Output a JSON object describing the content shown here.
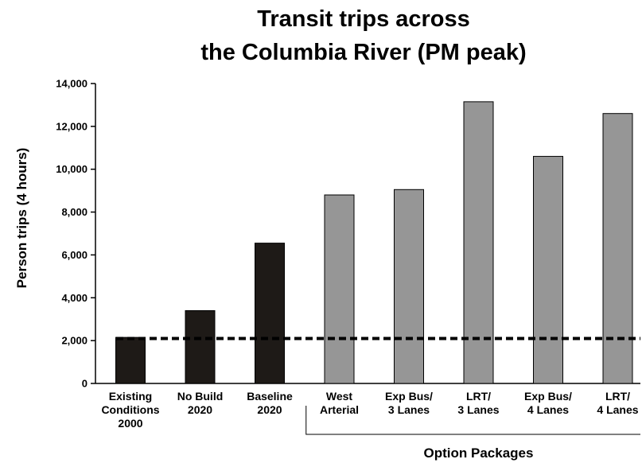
{
  "chart_data": {
    "type": "bar",
    "title": [
      "Transit trips across",
      "the Columbia River (PM peak)"
    ],
    "ylabel": "Person trips (4 hours)",
    "xlabel": "",
    "ylim": [
      0,
      14000
    ],
    "yticks": [
      0,
      2000,
      4000,
      6000,
      8000,
      10000,
      12000,
      14000
    ],
    "ytick_labels": [
      "0",
      "2,000",
      "4,000",
      "6,000",
      "8,000",
      "10,000",
      "12,000",
      "14,000"
    ],
    "grid": false,
    "legend": "none",
    "categories": [
      [
        "Existing",
        "Conditions",
        "2000"
      ],
      [
        "No Build",
        "2020"
      ],
      [
        "Baseline",
        "2020"
      ],
      [
        "West",
        "Arterial"
      ],
      [
        "Exp Bus/",
        "3 Lanes"
      ],
      [
        "LRT/",
        "3 Lanes"
      ],
      [
        "Exp Bus/",
        "4 Lanes"
      ],
      [
        "LRT/",
        "4 Lanes"
      ]
    ],
    "values": [
      2150,
      3400,
      6550,
      8800,
      9050,
      13150,
      10600,
      12600
    ],
    "bar_colors": [
      "#1e1a17",
      "#1e1a17",
      "#1e1a17",
      "#969696",
      "#969696",
      "#969696",
      "#969696",
      "#969696"
    ],
    "reference_line": {
      "value": 2100,
      "style": "dashed",
      "color": "#000000"
    },
    "group_bracket": {
      "label": "Option Packages",
      "from_index": 3,
      "to_index": 7
    }
  }
}
